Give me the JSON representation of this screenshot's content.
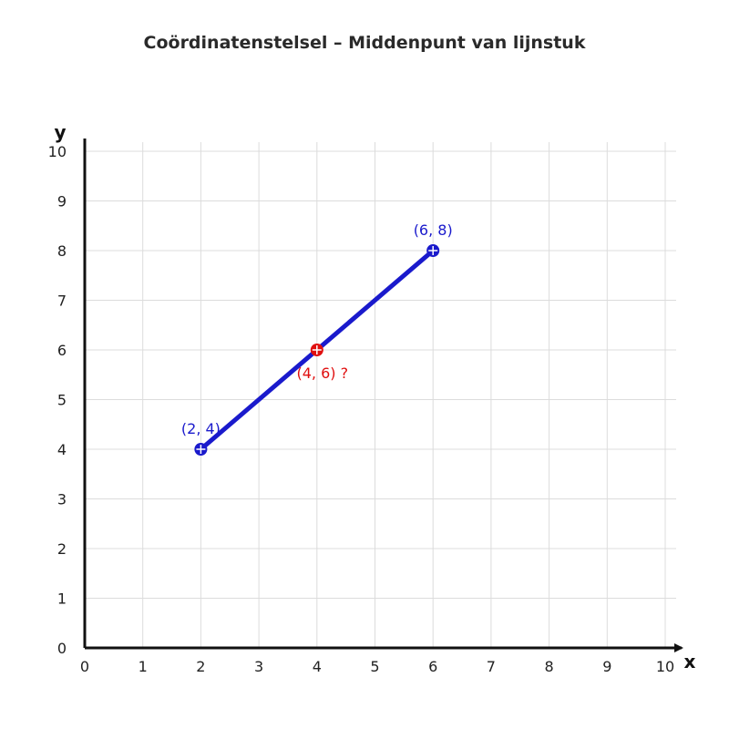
{
  "chart_data": {
    "type": "scatter",
    "title": "Coördinatenstelsel – Middenpunt van lijnstuk",
    "xlabel": "x",
    "ylabel": "y",
    "xlim": [
      0,
      10
    ],
    "ylim": [
      0,
      10
    ],
    "xticks": [
      "0",
      "1",
      "2",
      "3",
      "4",
      "5",
      "6",
      "7",
      "8",
      "9",
      "10"
    ],
    "yticks": [
      "0",
      "1",
      "2",
      "3",
      "4",
      "5",
      "6",
      "7",
      "8",
      "9",
      "10"
    ],
    "grid": true,
    "segment": {
      "from": [
        2,
        4
      ],
      "to": [
        6,
        8
      ],
      "color": "#1a1acc"
    },
    "points": [
      {
        "x": 2,
        "y": 4,
        "label": "(2, 4)",
        "color": "#1a1acc"
      },
      {
        "x": 6,
        "y": 8,
        "label": "(6, 8)",
        "color": "#1a1acc"
      },
      {
        "x": 4,
        "y": 6,
        "label": "(4, 6) ?",
        "color": "#e01010"
      }
    ]
  }
}
